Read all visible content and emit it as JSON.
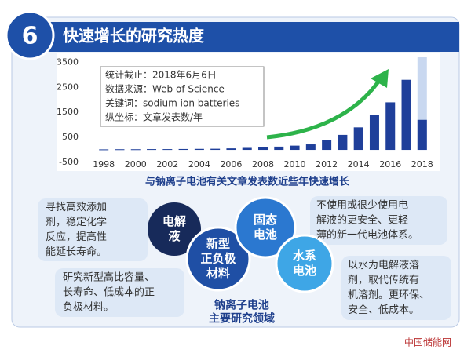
{
  "badge": "6",
  "header": "快速增长的研究热度",
  "chart_data": {
    "type": "bar",
    "x": [
      1998,
      1999,
      2000,
      2001,
      2002,
      2003,
      2004,
      2005,
      2006,
      2007,
      2008,
      2009,
      2010,
      2011,
      2012,
      2013,
      2014,
      2015,
      2016,
      2017,
      2018
    ],
    "xticks": [
      1998,
      2000,
      2002,
      2004,
      2006,
      2008,
      2010,
      2012,
      2014,
      2016,
      2018
    ],
    "xlim": [
      1997.3,
      2018.7
    ],
    "series": [
      {
        "color": "#c9d8f0",
        "values": [
          null,
          null,
          null,
          null,
          null,
          null,
          null,
          null,
          null,
          null,
          null,
          null,
          null,
          null,
          null,
          null,
          null,
          null,
          null,
          null,
          3700
        ]
      },
      {
        "color": "#1f3f9a",
        "values": [
          20,
          25,
          25,
          30,
          30,
          35,
          40,
          45,
          60,
          80,
          100,
          130,
          170,
          220,
          400,
          600,
          900,
          1400,
          1900,
          2800,
          1200
        ]
      }
    ],
    "ylim": [
      -500,
      3700
    ],
    "yticks": [
      -500,
      500,
      1500,
      2500,
      3500
    ],
    "notes": [
      "统计截止：2018年6月6日",
      "数据来源：Web of Science",
      "关键词：sodium ion batteries",
      "纵坐标：文章发表数/年"
    ],
    "caption": "与钠离子电池有关文章发表数近些年快速增长"
  },
  "areas": {
    "circles": [
      {
        "lines": [
          "电解",
          "液"
        ]
      },
      {
        "lines": [
          "新型",
          "正负极",
          "材料"
        ]
      },
      {
        "lines": [
          "固态",
          "电池"
        ]
      },
      {
        "lines": [
          "水系",
          "电池"
        ]
      }
    ],
    "center_caption": [
      "钠离子电池",
      "主要研究领域"
    ],
    "notes": [
      {
        "lines": [
          "寻找高效添加",
          "剂，稳定化学",
          "反应，提高性",
          "能延长寿命。"
        ]
      },
      {
        "lines": [
          "不使用或很少使用电",
          "解液的更安全、更轻",
          "薄的新一代电池体系。"
        ]
      },
      {
        "lines": [
          "研究新型高比容量、",
          "长寿命、低成本的正",
          "负极材料。"
        ]
      },
      {
        "lines": [
          "以水为电解液溶",
          "剂，取代传统有",
          "机溶剂。更环保、",
          "安全、低成本。"
        ]
      }
    ]
  },
  "watermark": "中国储能网"
}
